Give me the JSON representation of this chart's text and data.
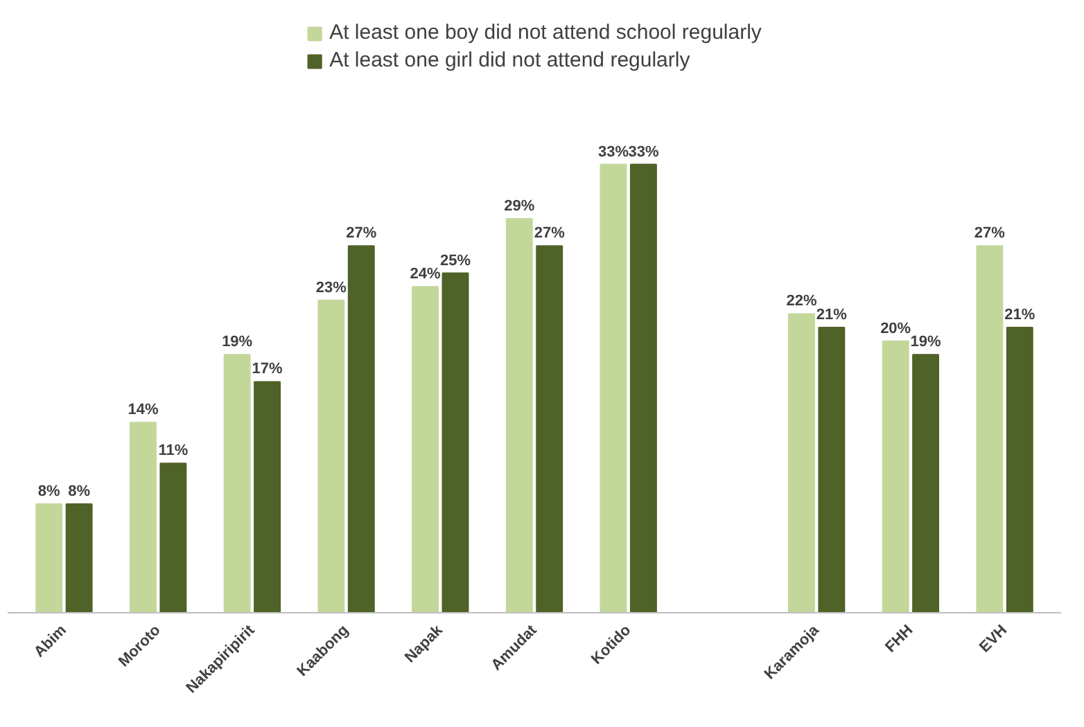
{
  "chart_data": {
    "type": "bar",
    "categories": [
      "Abim",
      "Moroto",
      "Nakapiripirit",
      "Kaabong",
      "Napak",
      "Amudat",
      "Kotido",
      null,
      "Karamoja",
      "FHH",
      "EVH"
    ],
    "series": [
      {
        "name": "At least one boy did not attend school regularly",
        "color": "#c4d79b",
        "values": [
          8,
          14,
          19,
          23,
          24,
          29,
          33,
          null,
          22,
          20,
          27
        ],
        "value_labels": [
          "8%",
          "14%",
          "19%",
          "23%",
          "24%",
          "29%",
          "33%",
          null,
          "22%",
          "20%",
          "27%"
        ]
      },
      {
        "name": "At least one girl did not attend regularly",
        "color": "#4f6228",
        "values": [
          8,
          11,
          17,
          27,
          25,
          27,
          33,
          null,
          21,
          19,
          21
        ],
        "value_labels": [
          "8%",
          "11%",
          "17%",
          "27%",
          "25%",
          "27%",
          "33%",
          null,
          "21%",
          "19%",
          "21%"
        ]
      }
    ],
    "legend": "top"
  }
}
